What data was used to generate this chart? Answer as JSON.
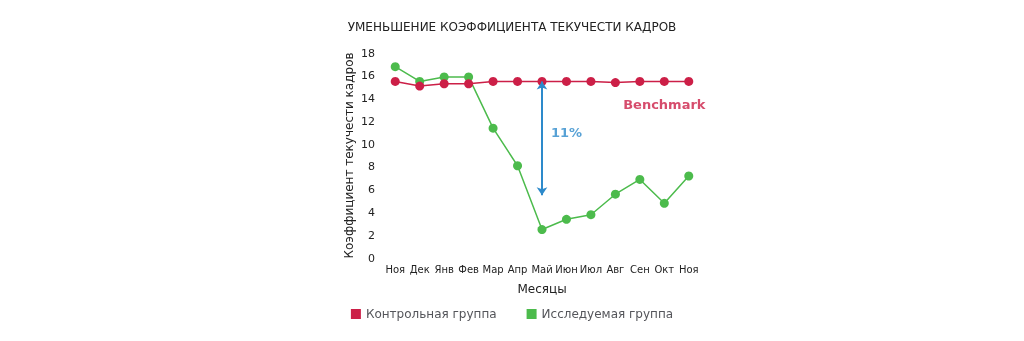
{
  "chart_data": {
    "type": "line",
    "title": "УМЕНЬШЕНИЕ КОЭФФИЦИЕНТА ТЕКУЧЕСТИ КАДРОВ",
    "xlabel": "Месяцы",
    "ylabel": "Коэффициент текучести кадров",
    "categories": [
      "Ноя",
      "Дек",
      "Янв",
      "Фев",
      "Мар",
      "Апр",
      "Май",
      "Июн",
      "Июл",
      "Авг",
      "Сен",
      "Окт",
      "Ноя"
    ],
    "series": [
      {
        "name": "Контрольная группа",
        "color": "#cc1f47",
        "values": [
          15.5,
          15.1,
          15.3,
          15.3,
          15.5,
          15.5,
          15.5,
          15.5,
          15.5,
          15.4,
          15.5,
          15.5,
          15.5
        ]
      },
      {
        "name": "Исследуемая группа",
        "color": "#4cbb4c",
        "values": [
          16.8,
          15.5,
          15.9,
          15.9,
          11.4,
          8.1,
          2.5,
          3.4,
          3.8,
          5.6,
          6.9,
          4.8,
          7.2
        ]
      }
    ],
    "annotations": [
      "Benchmark",
      "11%"
    ],
    "ylim": [
      0,
      18
    ],
    "yticks": [
      0,
      2,
      4,
      6,
      8,
      10,
      12,
      14,
      16,
      18
    ],
    "grid": false,
    "legend": "bottom",
    "marker": "circle",
    "line_style": "solid"
  }
}
